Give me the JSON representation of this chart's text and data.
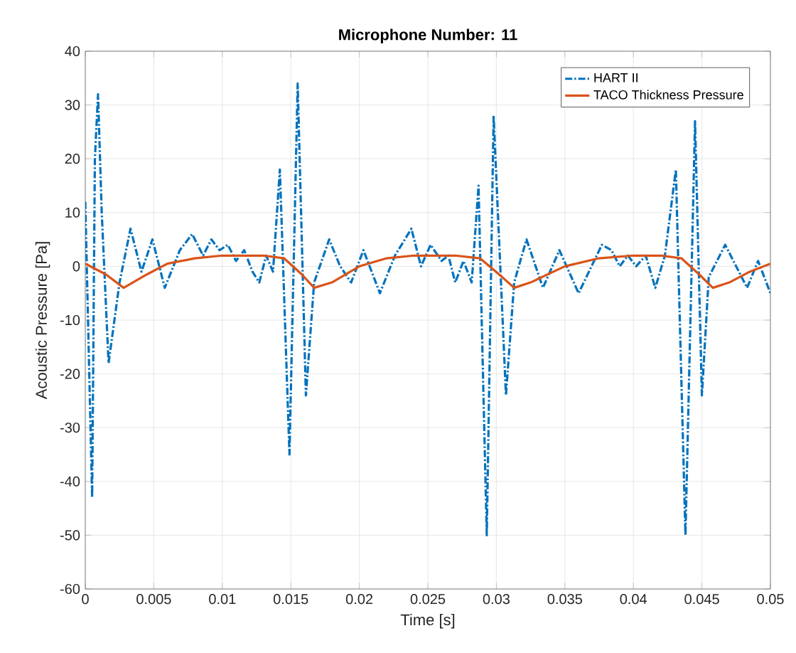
{
  "chart_data": {
    "type": "line",
    "title": "Microphone Number: 11",
    "xlabel": "Time [s]",
    "ylabel": "Acoustic Pressure [Pa]",
    "xlim": [
      0,
      0.05
    ],
    "ylim": [
      -60,
      40
    ],
    "xticks": [
      0,
      0.005,
      0.01,
      0.015,
      0.02,
      0.025,
      0.03,
      0.035,
      0.04,
      0.045,
      0.05
    ],
    "yticks": [
      -60,
      -50,
      -40,
      -30,
      -20,
      -10,
      0,
      10,
      20,
      30,
      40
    ],
    "grid": true,
    "legend": "top right",
    "marker": "none",
    "series": [
      {
        "name": "HART II",
        "color": "#0072bd",
        "line_style": "dashed",
        "x": [
          0,
          0.0002,
          0.0005,
          0.0007,
          0.00093,
          0.0012,
          0.0017,
          0.0025,
          0.0033,
          0.0041,
          0.0049,
          0.0058,
          0.0069,
          0.0078,
          0.0086,
          0.0092,
          0.0098,
          0.0104,
          0.011,
          0.0116,
          0.0122,
          0.0127,
          0.0132,
          0.0137,
          0.0142,
          0.0149,
          0.0155,
          0.0161,
          0.0167,
          0.0178,
          0.0186,
          0.0194,
          0.0203,
          0.0215,
          0.0226,
          0.0238,
          0.0245,
          0.0252,
          0.026,
          0.0265,
          0.027,
          0.0276,
          0.0282,
          0.0287,
          0.0293,
          0.0298,
          0.0307,
          0.0313,
          0.0322,
          0.0334,
          0.0346,
          0.036,
          0.0377,
          0.0384,
          0.039,
          0.0396,
          0.0402,
          0.0409,
          0.0416,
          0.0423,
          0.0431,
          0.0438,
          0.0445,
          0.045,
          0.0455,
          0.0467,
          0.0475,
          0.0483,
          0.0491,
          0.05
        ],
        "values": [
          12,
          -10,
          -43,
          20,
          32,
          10,
          -18,
          -3,
          7,
          -1,
          5,
          -4,
          3,
          6,
          2,
          5,
          3,
          4,
          1,
          3,
          -1,
          -3,
          2,
          -1,
          18,
          -35,
          34,
          -24,
          -3,
          5,
          0,
          -3,
          3,
          -5,
          2,
          7,
          0,
          4,
          1,
          2,
          -3,
          1,
          -3,
          15,
          -50,
          28,
          -24,
          -3,
          5,
          -4,
          3,
          -5,
          4,
          3,
          0,
          2,
          0,
          2,
          -4,
          2,
          18,
          -50,
          27,
          -24,
          -2,
          4,
          0,
          -4,
          1,
          -5
        ]
      },
      {
        "name": "TACO Thickness Pressure",
        "color": "#d95319",
        "line_style": "solid",
        "x": [
          0,
          0.0015,
          0.0028,
          0.0045,
          0.006,
          0.008,
          0.01,
          0.013,
          0.0145,
          0.0158,
          0.0167,
          0.018,
          0.02,
          0.022,
          0.024,
          0.027,
          0.0288,
          0.0302,
          0.0313,
          0.0325,
          0.035,
          0.0375,
          0.04,
          0.042,
          0.0435,
          0.0448,
          0.0458,
          0.047,
          0.0485,
          0.05
        ],
        "values": [
          0.5,
          -1.5,
          -4,
          -1.5,
          0.5,
          1.5,
          2,
          2,
          1.5,
          -1.5,
          -4,
          -3,
          0,
          1.5,
          2,
          2,
          1.5,
          -1.5,
          -4,
          -3,
          0,
          1.5,
          2,
          2,
          1.5,
          -1.5,
          -4,
          -3,
          -1,
          0.5
        ]
      }
    ]
  }
}
